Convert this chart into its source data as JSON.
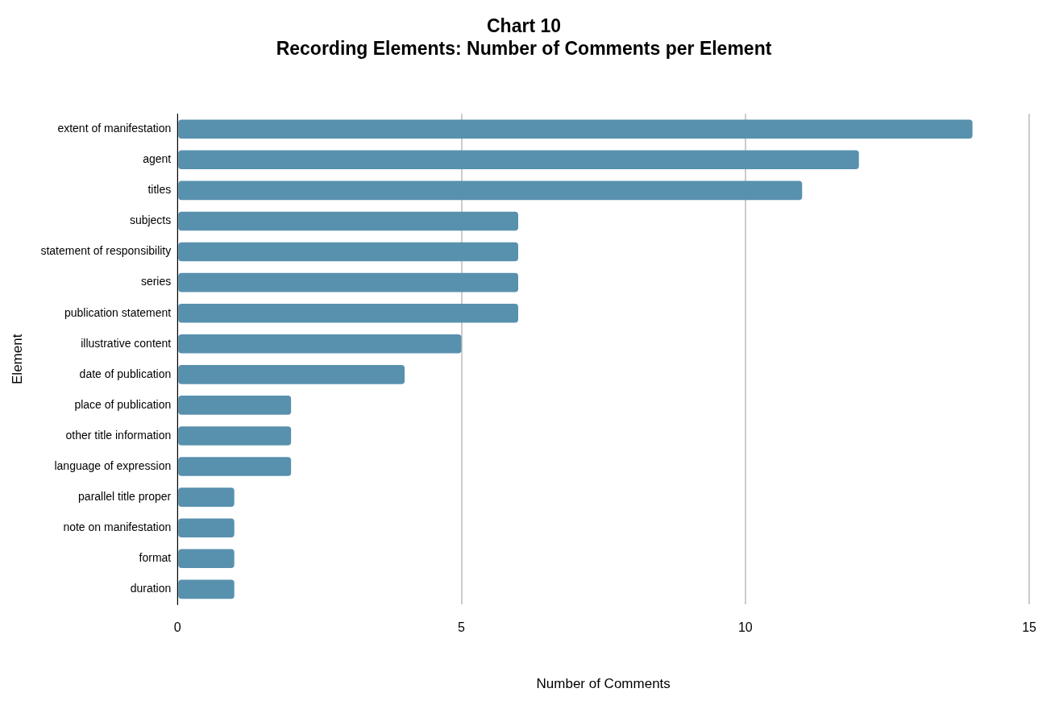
{
  "chart_data": {
    "type": "bar",
    "orientation": "horizontal",
    "title": [
      "Chart 10",
      "Recording Elements: Number of Comments per Element"
    ],
    "xlabel": "Number of Comments",
    "ylabel": "Element",
    "categories": [
      "extent of manifestation",
      "agent",
      "titles",
      "subjects",
      "statement of responsibility",
      "series",
      "publication statement",
      "illustrative content",
      "date of publication",
      "place of publication",
      "other title information",
      "language of expression",
      "parallel title proper",
      "note on manifestation",
      "format",
      "duration"
    ],
    "values": [
      14,
      12,
      11,
      6,
      6,
      6,
      6,
      5,
      4,
      2,
      2,
      2,
      1,
      1,
      1,
      1
    ],
    "color": "#5891ae",
    "xlim": [
      0,
      15
    ],
    "xticks": [
      0,
      5,
      10,
      15
    ],
    "grid": "x",
    "legend": false
  }
}
